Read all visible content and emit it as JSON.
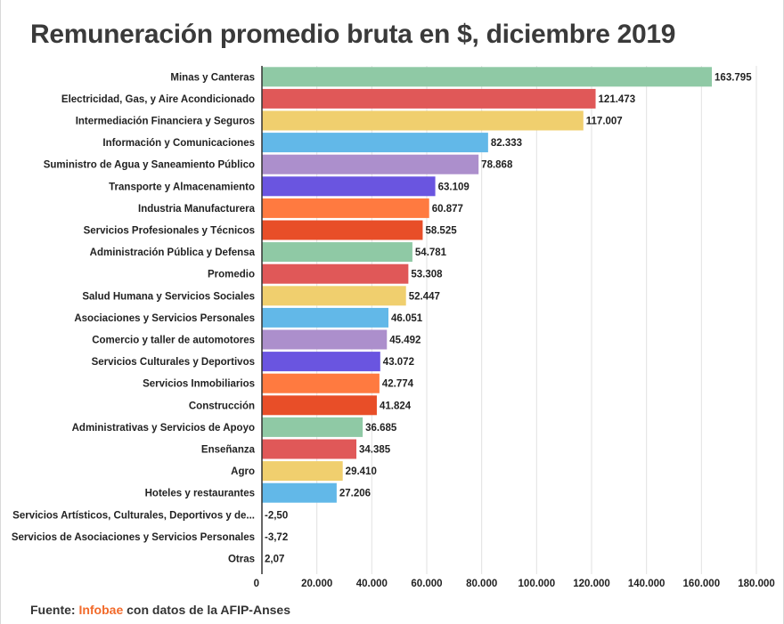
{
  "title": "Remuneración promedio bruta en $, diciembre 2019",
  "source": {
    "prefix": "Fuente: ",
    "brand": "Infobae",
    "suffix": " con datos de la AFIP-Anses"
  },
  "colors": {
    "palette": [
      "#8fc9a5",
      "#e05858",
      "#f0cf6e",
      "#62b8e8",
      "#ac8fcc",
      "#6a55e0",
      "#ff7a40",
      "#e84e28"
    ],
    "gridline": "#e2e2e2",
    "axis": "#333333",
    "text": "#222222"
  },
  "chart_data": {
    "type": "bar",
    "orientation": "horizontal",
    "categories": [
      "Minas y Canteras",
      "Electricidad, Gas, y Aire Acondicionado",
      "Intermediación Financiera y Seguros",
      "Información y Comunicaciones",
      "Suministro de Agua y Saneamiento Público",
      "Transporte y Almacenamiento",
      "Industria Manufacturera",
      "Servicios Profesionales y Técnicos",
      "Administración Pública y Defensa",
      "Promedio",
      "Salud Humana y Servicios Sociales",
      "Asociaciones y Servicios Personales",
      "Comercio y taller de automotores",
      "Servicios Culturales y Deportivos",
      "Servicios Inmobiliarios",
      "Construcción",
      "Administrativas y Servicios de Apoyo",
      "Enseñanza",
      "Agro",
      "Hoteles y restaurantes",
      "Servicios Artísticos, Culturales, Deportivos y de...",
      "Servicios de Asociaciones y Servicios Personales",
      "Otras"
    ],
    "values": [
      163795,
      121473,
      117007,
      82333,
      78868,
      63109,
      60877,
      58525,
      54781,
      53308,
      52447,
      46051,
      45492,
      43072,
      42774,
      41824,
      36685,
      34385,
      29410,
      27206,
      -2.5,
      -3.72,
      2.07
    ],
    "value_labels": [
      "163.795",
      "121.473",
      "117.007",
      "82.333",
      "78.868",
      "63.109",
      "60.877",
      "58.525",
      "54.781",
      "53.308",
      "52.447",
      "46.051",
      "45.492",
      "43.072",
      "42.774",
      "41.824",
      "36.685",
      "34.385",
      "29.410",
      "27.206",
      "-2,50",
      "-3,72",
      "2,07"
    ],
    "xlim": [
      0,
      180000
    ],
    "xticks": [
      0,
      20000,
      40000,
      60000,
      80000,
      100000,
      120000,
      140000,
      160000,
      180000
    ],
    "xtick_labels": [
      "0",
      "20.000",
      "40.000",
      "60.000",
      "80.000",
      "100.000",
      "120.000",
      "140.000",
      "160.000",
      "180.000"
    ],
    "grid": true,
    "legend": "none"
  }
}
